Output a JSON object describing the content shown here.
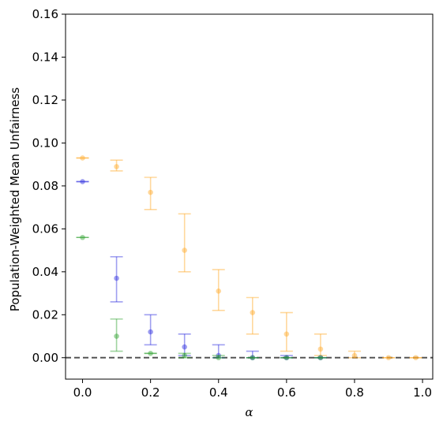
{
  "chart_data": {
    "type": "scatter",
    "title": "",
    "xlabel": "α",
    "ylabel": "Population-Weighted Mean Unfairness",
    "xlim": [
      -0.05,
      1.03
    ],
    "ylim": [
      -0.01,
      0.16
    ],
    "xticks": [
      {
        "value": 0.0,
        "label": "0.0"
      },
      {
        "value": 0.2,
        "label": "0.2"
      },
      {
        "value": 0.4,
        "label": "0.4"
      },
      {
        "value": 0.6,
        "label": "0.6"
      },
      {
        "value": 0.8,
        "label": "0.8"
      },
      {
        "value": 1.0,
        "label": "1.0"
      }
    ],
    "yticks": [
      {
        "value": 0.0,
        "label": "0.00"
      },
      {
        "value": 0.02,
        "label": "0.02"
      },
      {
        "value": 0.04,
        "label": "0.04"
      },
      {
        "value": 0.06,
        "label": "0.06"
      },
      {
        "value": 0.08,
        "label": "0.08"
      },
      {
        "value": 0.1,
        "label": "0.10"
      },
      {
        "value": 0.12,
        "label": "0.12"
      },
      {
        "value": 0.14,
        "label": "0.14"
      },
      {
        "value": 0.16,
        "label": "0.16"
      }
    ],
    "grid": false,
    "reference_line": {
      "y": 0.0,
      "style": "dashed",
      "color": "#555555"
    },
    "series": [
      {
        "color": "#ffa826",
        "points": [
          {
            "x": 0.0,
            "y": 0.093,
            "lo": 0.093,
            "hi": 0.093
          },
          {
            "x": 0.1,
            "y": 0.089,
            "lo": 0.087,
            "hi": 0.092
          },
          {
            "x": 0.2,
            "y": 0.077,
            "lo": 0.069,
            "hi": 0.084
          },
          {
            "x": 0.3,
            "y": 0.05,
            "lo": 0.04,
            "hi": 0.067
          },
          {
            "x": 0.4,
            "y": 0.031,
            "lo": 0.022,
            "hi": 0.041
          },
          {
            "x": 0.5,
            "y": 0.021,
            "lo": 0.011,
            "hi": 0.028
          },
          {
            "x": 0.6,
            "y": 0.011,
            "lo": 0.003,
            "hi": 0.021
          },
          {
            "x": 0.7,
            "y": 0.004,
            "lo": 0.001,
            "hi": 0.011
          },
          {
            "x": 0.8,
            "y": 0.001,
            "lo": 0.0,
            "hi": 0.003
          },
          {
            "x": 0.9,
            "y": 0.0,
            "lo": 0.0,
            "hi": 0.0
          },
          {
            "x": 0.98,
            "y": 0.0,
            "lo": 0.0,
            "hi": 0.0
          }
        ]
      },
      {
        "color": "#2b2bdd",
        "points": [
          {
            "x": 0.0,
            "y": 0.082,
            "lo": 0.082,
            "hi": 0.082
          },
          {
            "x": 0.1,
            "y": 0.037,
            "lo": 0.026,
            "hi": 0.047
          },
          {
            "x": 0.2,
            "y": 0.012,
            "lo": 0.006,
            "hi": 0.02
          },
          {
            "x": 0.3,
            "y": 0.005,
            "lo": 0.001,
            "hi": 0.011
          },
          {
            "x": 0.4,
            "y": 0.001,
            "lo": 0.0,
            "hi": 0.006
          },
          {
            "x": 0.5,
            "y": 0.0,
            "lo": 0.0,
            "hi": 0.003
          },
          {
            "x": 0.6,
            "y": 0.0,
            "lo": 0.0,
            "hi": 0.001
          },
          {
            "x": 0.7,
            "y": 0.0,
            "lo": 0.0,
            "hi": 0.0
          }
        ]
      },
      {
        "color": "#2ca02c",
        "points": [
          {
            "x": 0.0,
            "y": 0.056,
            "lo": 0.056,
            "hi": 0.056
          },
          {
            "x": 0.1,
            "y": 0.01,
            "lo": 0.003,
            "hi": 0.018
          },
          {
            "x": 0.2,
            "y": 0.002,
            "lo": 0.002,
            "hi": 0.002
          },
          {
            "x": 0.3,
            "y": 0.001,
            "lo": 0.0,
            "hi": 0.002
          },
          {
            "x": 0.4,
            "y": 0.0,
            "lo": 0.0,
            "hi": 0.001
          },
          {
            "x": 0.5,
            "y": 0.0,
            "lo": 0.0,
            "hi": 0.0
          },
          {
            "x": 0.6,
            "y": 0.0,
            "lo": 0.0,
            "hi": 0.0
          },
          {
            "x": 0.7,
            "y": 0.0,
            "lo": 0.0,
            "hi": 0.0
          }
        ]
      }
    ]
  }
}
